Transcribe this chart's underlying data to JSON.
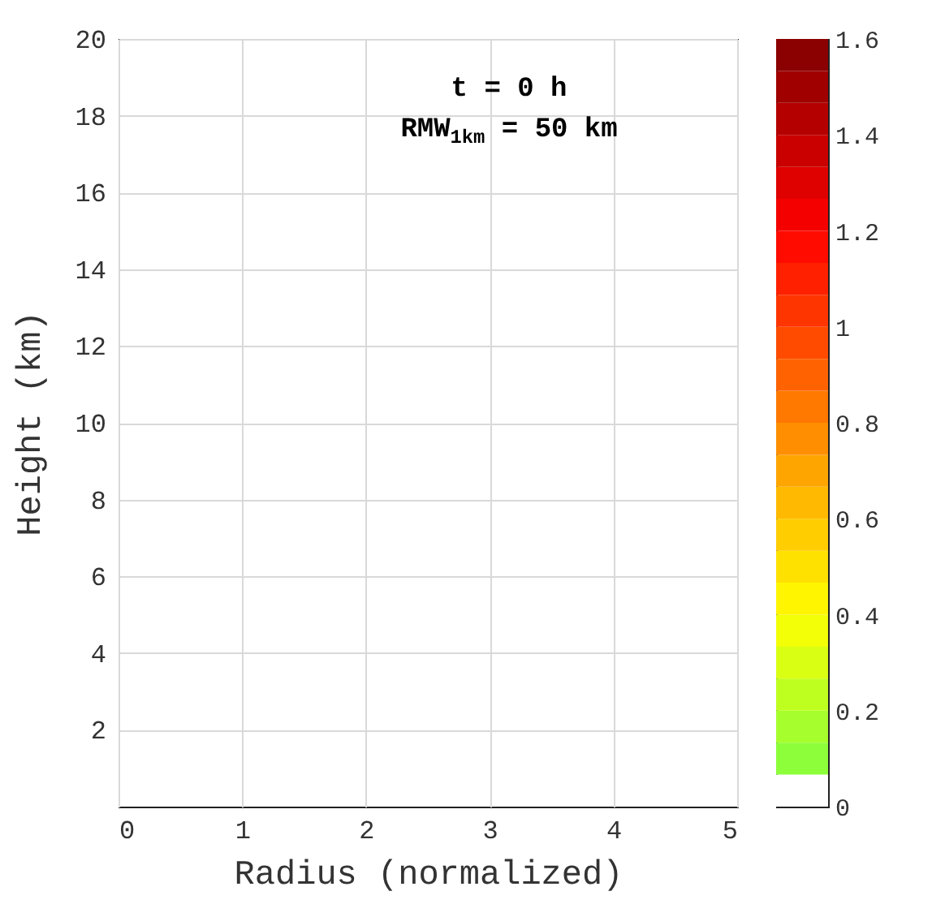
{
  "chart_data": {
    "type": "heatmap",
    "xlabel": "Radius (normalized)",
    "ylabel": "Height (km)",
    "annotations": [
      "t = 0 h",
      "RMW$_{1km}$ = 50 km"
    ],
    "xlim": [
      0,
      5
    ],
    "xticks": [
      0,
      1,
      2,
      3,
      4,
      5
    ],
    "ylim": [
      0,
      20
    ],
    "yticks": [
      2,
      4,
      6,
      8,
      10,
      12,
      14,
      16,
      18,
      20
    ],
    "clim": [
      0,
      1.6
    ],
    "cticks": [
      0,
      0.2,
      0.4,
      0.6,
      0.8,
      1,
      1.2,
      1.4,
      1.6
    ],
    "grid": true
  }
}
